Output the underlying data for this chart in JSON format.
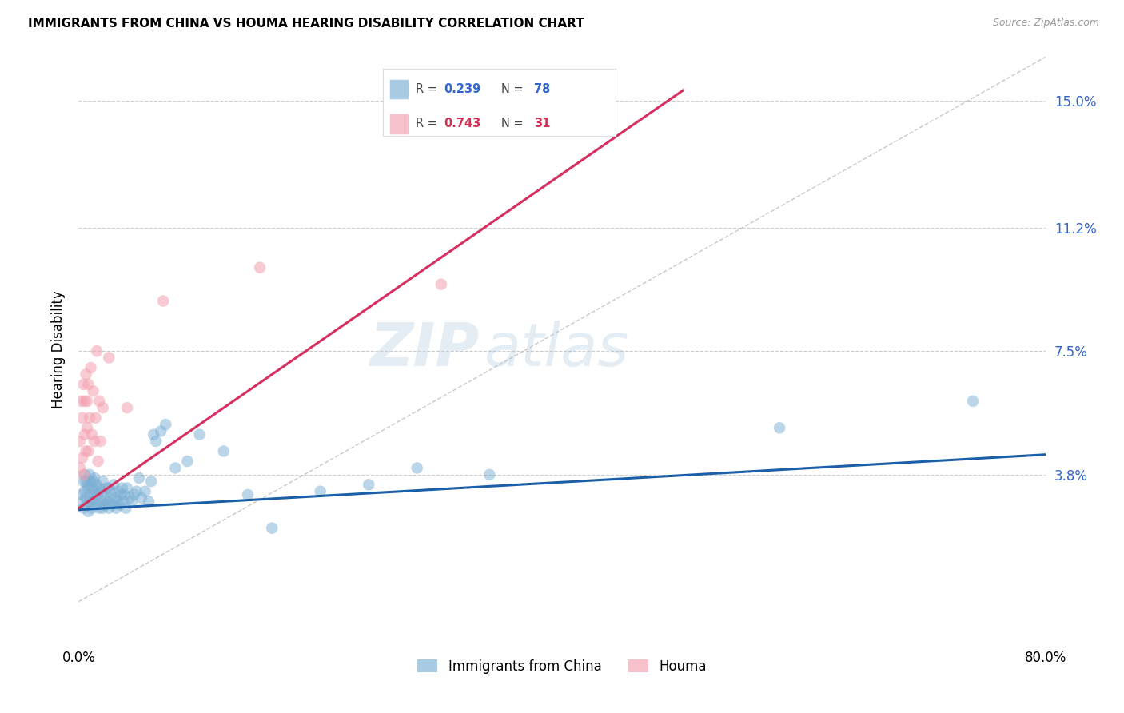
{
  "title": "IMMIGRANTS FROM CHINA VS HOUMA HEARING DISABILITY CORRELATION CHART",
  "source": "Source: ZipAtlas.com",
  "ylabel": "Hearing Disability",
  "ytick_labels": [
    "15.0%",
    "11.2%",
    "7.5%",
    "3.8%"
  ],
  "ytick_vals": [
    0.15,
    0.112,
    0.075,
    0.038
  ],
  "xmin": 0.0,
  "xmax": 0.8,
  "ymin": -0.012,
  "ymax": 0.163,
  "r_blue": "0.239",
  "n_blue": "78",
  "r_pink": "0.743",
  "n_pink": "31",
  "legend_label_blue": "Immigrants from China",
  "legend_label_pink": "Houma",
  "color_blue": "#7BAFD4",
  "color_pink": "#F4A0B0",
  "color_line_blue": "#1A5FA8",
  "color_line_pink": "#D63060",
  "color_r_blue": "#3366CC",
  "color_r_pink": "#CC3355",
  "color_n_blue": "#3366CC",
  "color_n_pink": "#CC3355",
  "color_diag": "#BBBBBB",
  "watermark_zip": "ZIP",
  "watermark_atlas": "atlas",
  "blue_points_x": [
    0.002,
    0.003,
    0.004,
    0.004,
    0.005,
    0.005,
    0.006,
    0.006,
    0.007,
    0.007,
    0.008,
    0.008,
    0.009,
    0.009,
    0.01,
    0.01,
    0.011,
    0.011,
    0.012,
    0.012,
    0.013,
    0.013,
    0.014,
    0.015,
    0.015,
    0.016,
    0.017,
    0.017,
    0.018,
    0.019,
    0.02,
    0.02,
    0.021,
    0.022,
    0.023,
    0.024,
    0.025,
    0.025,
    0.026,
    0.027,
    0.028,
    0.029,
    0.03,
    0.031,
    0.032,
    0.033,
    0.034,
    0.035,
    0.036,
    0.037,
    0.038,
    0.039,
    0.04,
    0.042,
    0.044,
    0.046,
    0.048,
    0.05,
    0.052,
    0.055,
    0.058,
    0.06,
    0.062,
    0.064,
    0.068,
    0.072,
    0.08,
    0.09,
    0.1,
    0.12,
    0.14,
    0.16,
    0.2,
    0.24,
    0.28,
    0.34,
    0.58,
    0.74
  ],
  "blue_points_y": [
    0.032,
    0.03,
    0.028,
    0.036,
    0.033,
    0.038,
    0.031,
    0.036,
    0.029,
    0.035,
    0.027,
    0.034,
    0.03,
    0.038,
    0.032,
    0.036,
    0.028,
    0.034,
    0.03,
    0.036,
    0.031,
    0.037,
    0.033,
    0.029,
    0.035,
    0.032,
    0.028,
    0.034,
    0.03,
    0.033,
    0.028,
    0.036,
    0.031,
    0.029,
    0.034,
    0.03,
    0.028,
    0.034,
    0.031,
    0.033,
    0.029,
    0.035,
    0.031,
    0.028,
    0.03,
    0.033,
    0.029,
    0.032,
    0.034,
    0.03,
    0.032,
    0.028,
    0.034,
    0.031,
    0.03,
    0.032,
    0.033,
    0.037,
    0.031,
    0.033,
    0.03,
    0.036,
    0.05,
    0.048,
    0.051,
    0.053,
    0.04,
    0.042,
    0.05,
    0.045,
    0.032,
    0.022,
    0.033,
    0.035,
    0.04,
    0.038,
    0.052,
    0.06
  ],
  "pink_points_x": [
    0.001,
    0.001,
    0.002,
    0.003,
    0.003,
    0.004,
    0.004,
    0.005,
    0.005,
    0.006,
    0.006,
    0.007,
    0.007,
    0.008,
    0.008,
    0.009,
    0.01,
    0.011,
    0.012,
    0.013,
    0.014,
    0.015,
    0.016,
    0.017,
    0.018,
    0.02,
    0.025,
    0.04,
    0.07,
    0.15,
    0.3
  ],
  "pink_points_y": [
    0.04,
    0.048,
    0.06,
    0.043,
    0.055,
    0.038,
    0.065,
    0.05,
    0.06,
    0.045,
    0.068,
    0.052,
    0.06,
    0.045,
    0.065,
    0.055,
    0.07,
    0.05,
    0.063,
    0.048,
    0.055,
    0.075,
    0.042,
    0.06,
    0.048,
    0.058,
    0.073,
    0.058,
    0.09,
    0.1,
    0.095
  ],
  "blue_line": [
    [
      0.0,
      0.0275
    ],
    [
      0.8,
      0.044
    ]
  ],
  "pink_line": [
    [
      0.0,
      0.028
    ],
    [
      0.5,
      0.153
    ]
  ],
  "diag_line": [
    [
      0.0,
      0.0
    ],
    [
      0.8,
      0.163
    ]
  ]
}
